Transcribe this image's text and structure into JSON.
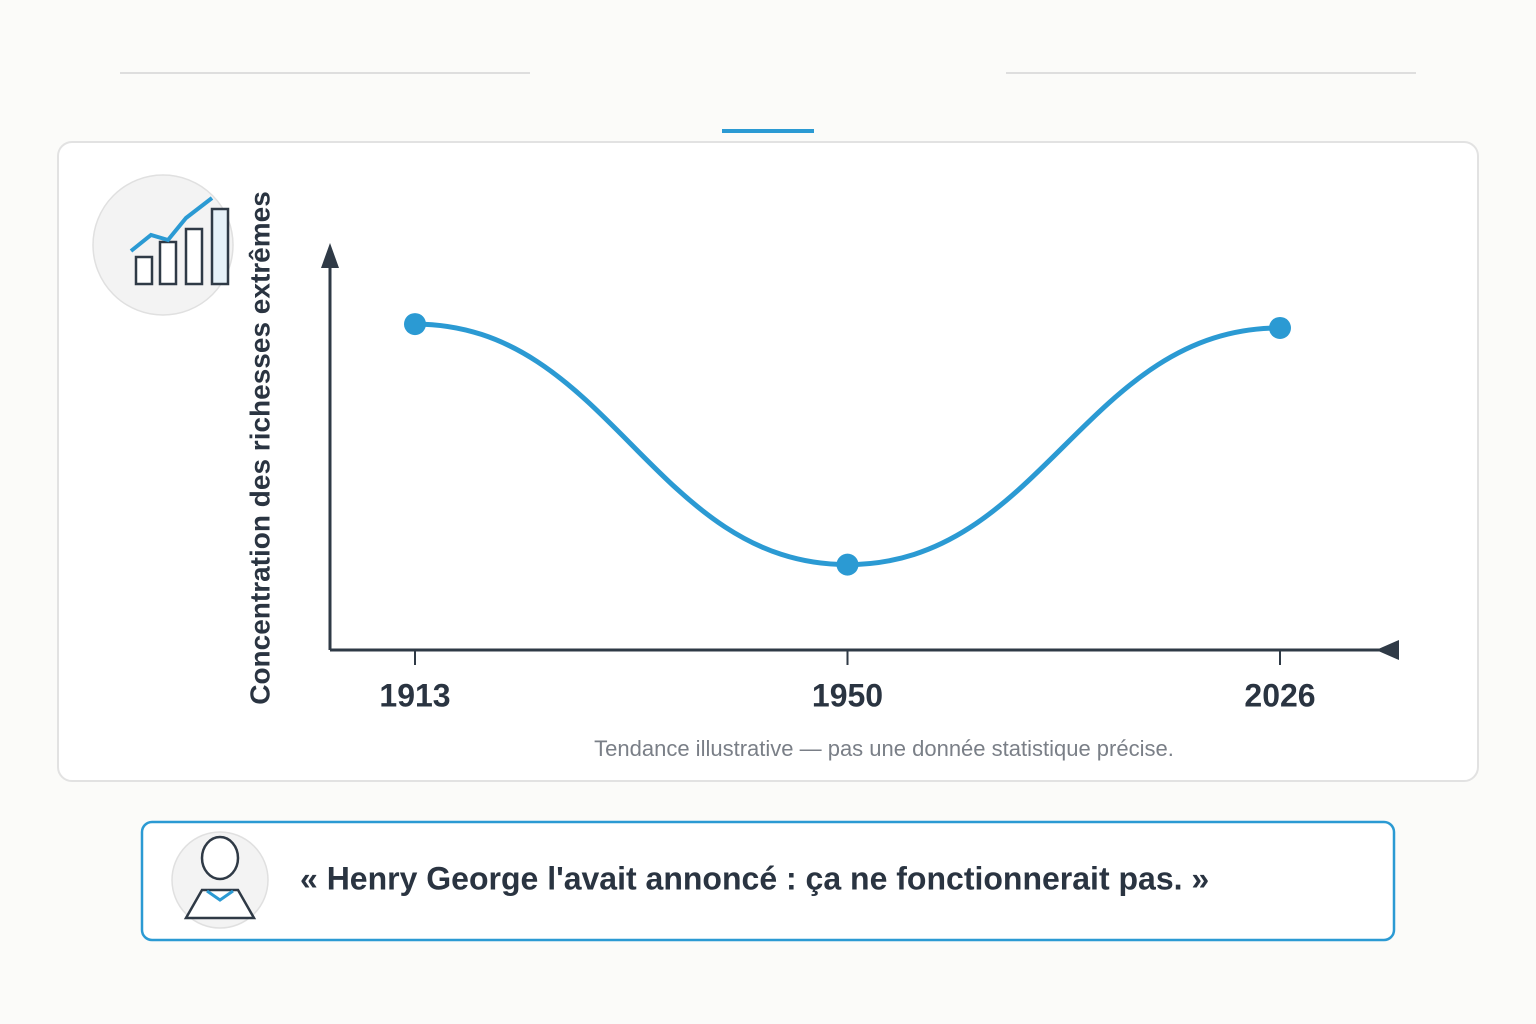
{
  "chart_data": {
    "type": "line",
    "y_label": "Concentration des richesses extrêmes",
    "categories": [
      "1913",
      "1950",
      "2026"
    ],
    "values": [
      84,
      22,
      83
    ],
    "color": "#2b9ad3",
    "ylim": [
      0,
      100
    ],
    "note": "Tendance illustrative — pas une donnée statistique précise."
  },
  "quote": "« Henry George l'avait annoncé : ça ne fonctionnerait pas. »"
}
